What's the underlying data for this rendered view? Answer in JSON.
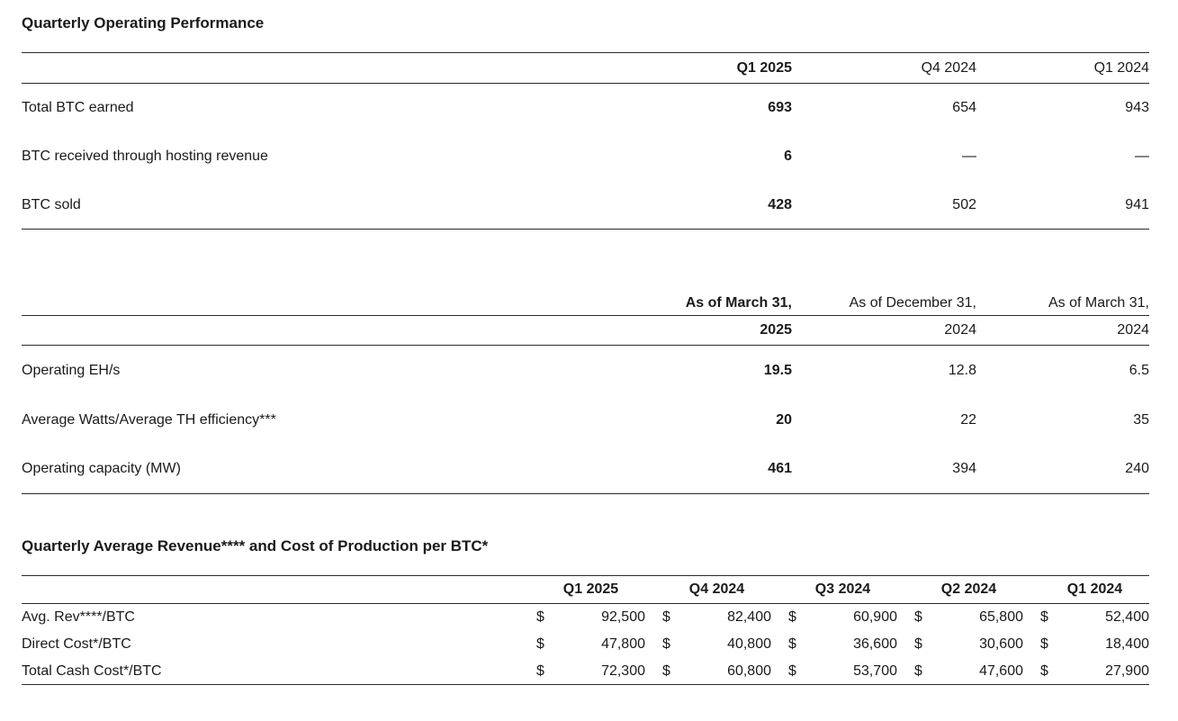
{
  "page": {
    "title_operating": "Quarterly Operating Performance",
    "title_revenue_cost": "Quarterly Average Revenue**** and Cost of Production per BTC*"
  },
  "btc_table": {
    "headers": [
      "Q1 2025",
      "Q4 2024",
      "Q1 2024"
    ],
    "rows": [
      {
        "label": "Total BTC earned",
        "values": [
          "693",
          "654",
          "943"
        ]
      },
      {
        "label": "BTC received through hosting revenue",
        "values": [
          "6",
          "—",
          "—"
        ]
      },
      {
        "label": "BTC sold",
        "values": [
          "428",
          "502",
          "941"
        ]
      }
    ]
  },
  "capacity_table": {
    "headers": [
      {
        "line1": "As of March 31,",
        "line2": "2025"
      },
      {
        "line1": "As of December 31,",
        "line2": "2024"
      },
      {
        "line1": "As of March 31,",
        "line2": "2024"
      }
    ],
    "rows": [
      {
        "label": "Operating EH/s",
        "values": [
          "19.5",
          "12.8",
          "6.5"
        ]
      },
      {
        "label": "Average Watts/Average TH efficiency***",
        "values": [
          "20",
          "22",
          "35"
        ]
      },
      {
        "label": "Operating capacity (MW)",
        "values": [
          "461",
          "394",
          "240"
        ]
      }
    ]
  },
  "cost_table": {
    "currency": "$",
    "headers": [
      "Q1 2025",
      "Q4 2024",
      "Q3 2024",
      "Q2 2024",
      "Q1 2024"
    ],
    "rows": [
      {
        "label": "Avg. Rev****/BTC",
        "values": [
          "92,500",
          "82,400",
          "60,900",
          "65,800",
          "52,400"
        ]
      },
      {
        "label": "Direct Cost*/BTC",
        "values": [
          "47,800",
          "40,800",
          "36,600",
          "30,600",
          "18,400"
        ]
      },
      {
        "label": "Total Cash Cost*/BTC",
        "values": [
          "72,300",
          "60,800",
          "53,700",
          "47,600",
          "27,900"
        ]
      }
    ]
  }
}
